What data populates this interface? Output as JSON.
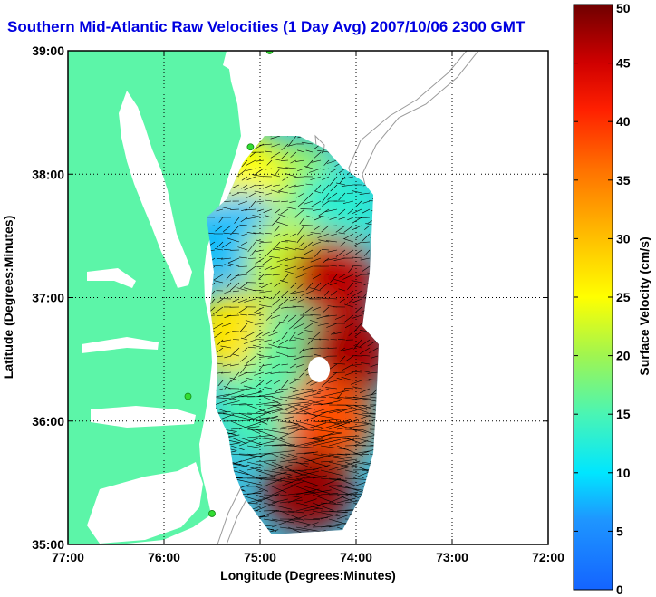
{
  "title": "Southern Mid-Atlantic Raw Velocities (1 Day Avg) 2007/10/06 2300 GMT",
  "x_axis": {
    "label": "Longitude (Degrees:Minutes)",
    "range": [
      -77,
      -72
    ],
    "ticks": [
      {
        "value": -77,
        "label": "77:00"
      },
      {
        "value": -76,
        "label": "76:00"
      },
      {
        "value": -75,
        "label": "75:00"
      },
      {
        "value": -74,
        "label": "74:00"
      },
      {
        "value": -73,
        "label": "73:00"
      },
      {
        "value": -72,
        "label": "72:00"
      }
    ]
  },
  "y_axis": {
    "label": "Latitude (Degrees:Minutes)",
    "range": [
      35,
      39
    ],
    "ticks": [
      {
        "value": 35,
        "label": "35:00"
      },
      {
        "value": 36,
        "label": "36:00"
      },
      {
        "value": 37,
        "label": "37:00"
      },
      {
        "value": 38,
        "label": "38:00"
      },
      {
        "value": 39,
        "label": "39:00"
      }
    ]
  },
  "colorbar": {
    "label": "Surface Velocity (cm/s)",
    "range": [
      0,
      50
    ],
    "ticks": [
      {
        "value": 0,
        "label": "0"
      },
      {
        "value": 5,
        "label": "5"
      },
      {
        "value": 10,
        "label": "10"
      },
      {
        "value": 15,
        "label": "15"
      },
      {
        "value": 20,
        "label": "20"
      },
      {
        "value": 25,
        "label": "25"
      },
      {
        "value": 30,
        "label": "30"
      },
      {
        "value": 35,
        "label": "35"
      },
      {
        "value": 40,
        "label": "40"
      },
      {
        "value": 45,
        "label": "45"
      },
      {
        "value": 50,
        "label": "50"
      }
    ]
  },
  "colors": {
    "land": "#5cf5a8",
    "title": "#0000e0",
    "grid": "#000000",
    "bathymetry": "#9a9a9a",
    "station": "#33dd33"
  },
  "chart_data": {
    "type": "heatmap",
    "grid_on": true,
    "zones": [
      {
        "lon": -74.6,
        "lat": 37.9,
        "speed": 20
      },
      {
        "lon": -75.2,
        "lat": 38.0,
        "speed": 25
      },
      {
        "lon": -74.2,
        "lat": 37.7,
        "speed": 13
      },
      {
        "lon": -75.2,
        "lat": 37.5,
        "speed": 8
      },
      {
        "lon": -74.7,
        "lat": 37.3,
        "speed": 22
      },
      {
        "lon": -74.25,
        "lat": 37.15,
        "speed": 46
      },
      {
        "lon": -75.25,
        "lat": 36.7,
        "speed": 27
      },
      {
        "lon": -74.6,
        "lat": 36.55,
        "speed": 16
      },
      {
        "lon": -74.1,
        "lat": 36.55,
        "speed": 47
      },
      {
        "lon": -75.0,
        "lat": 36.1,
        "speed": 15
      },
      {
        "lon": -74.3,
        "lat": 36.0,
        "speed": 38
      },
      {
        "lon": -74.5,
        "lat": 35.45,
        "speed": 48
      }
    ],
    "stations": [
      {
        "lon": -74.9,
        "lat": 39.0
      },
      {
        "lon": -75.1,
        "lat": 38.22
      },
      {
        "lon": -75.75,
        "lat": 36.2
      },
      {
        "lon": -75.5,
        "lat": 35.25
      }
    ]
  }
}
